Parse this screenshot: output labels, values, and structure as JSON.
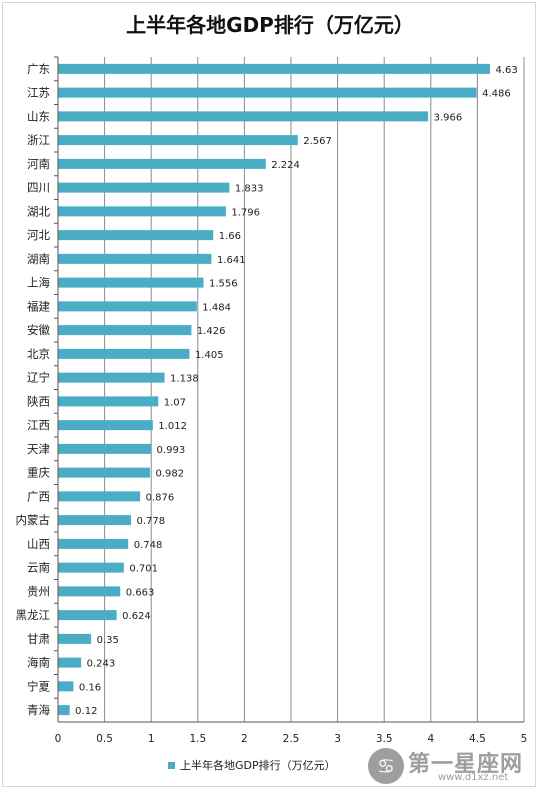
{
  "chart_data": {
    "type": "bar",
    "orientation": "horizontal",
    "title": "上半年各地GDP排行（万亿元）",
    "categories": [
      "广东",
      "江苏",
      "山东",
      "浙江",
      "河南",
      "四川",
      "湖北",
      "河北",
      "湖南",
      "上海",
      "福建",
      "安徽",
      "北京",
      "辽宁",
      "陕西",
      "江西",
      "天津",
      "重庆",
      "广西",
      "内蒙古",
      "山西",
      "云南",
      "贵州",
      "黑龙江",
      "甘肃",
      "海南",
      "宁夏",
      "青海"
    ],
    "series": [
      {
        "name": "上半年各地GDP排行（万亿元）",
        "values": [
          4.63,
          4.486,
          3.966,
          2.567,
          2.224,
          1.833,
          1.796,
          1.66,
          1.641,
          1.556,
          1.484,
          1.426,
          1.405,
          1.138,
          1.07,
          1.012,
          0.993,
          0.982,
          0.876,
          0.778,
          0.748,
          0.701,
          0.663,
          0.624,
          0.35,
          0.243,
          0.16,
          0.12
        ],
        "labels": [
          "4.63",
          "4.486",
          "3.966",
          "2.567",
          "2.224",
          "1.833",
          "1.796",
          "1.66",
          "1.641",
          "1.556",
          "1.484",
          "1.426",
          "1.405",
          "1.138",
          "1.07",
          "1.012",
          "0.993",
          "0.982",
          "0.876",
          "0.778",
          "0.748",
          "0.701",
          "0.663",
          "0.624",
          "0.35",
          "0.243",
          "0.16",
          "0.12"
        ]
      }
    ],
    "xlim": [
      0,
      5
    ],
    "xticks": [
      "0",
      "0.5",
      "1",
      "1.5",
      "2",
      "2.5",
      "3",
      "3.5",
      "4",
      "4.5",
      "5"
    ],
    "grid": true,
    "legend": "bottom",
    "bar_color": "#4bacc6"
  },
  "watermark": {
    "text": "第一星座网",
    "url": "www.d1xz.net",
    "icon": "constellation-icon"
  }
}
